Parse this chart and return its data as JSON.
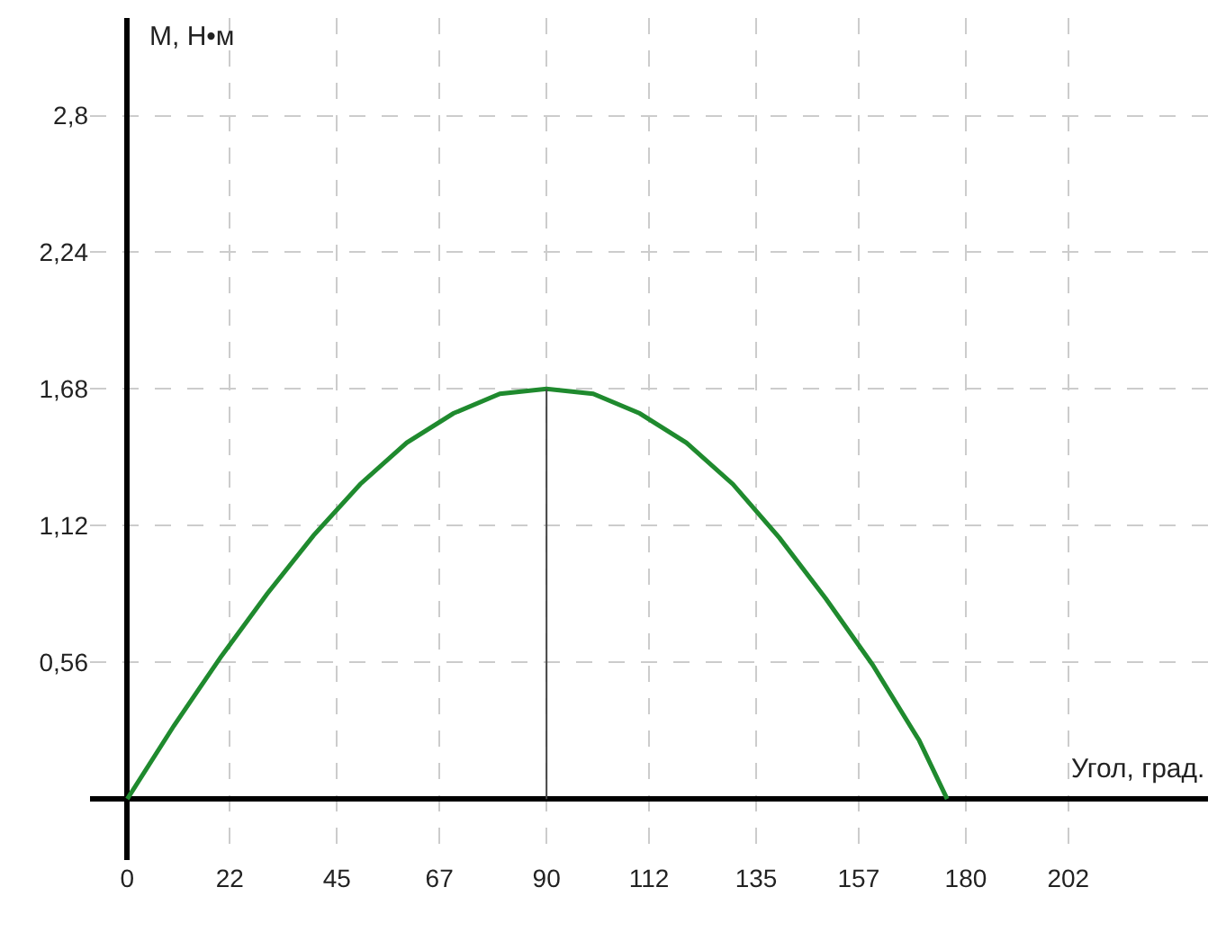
{
  "chart_data": {
    "type": "line",
    "xlabel": "Угол, град.",
    "ylabel": "М, Н•м",
    "series": [
      {
        "color": "#1f8a2e",
        "x": [
          0,
          10,
          20,
          30,
          40,
          50,
          60,
          70,
          80,
          90,
          100,
          110,
          120,
          130,
          140,
          150,
          160,
          170,
          176
        ],
        "values": [
          0,
          0.3,
          0.58,
          0.84,
          1.08,
          1.29,
          1.46,
          1.58,
          1.66,
          1.68,
          1.66,
          1.58,
          1.46,
          1.29,
          1.07,
          0.82,
          0.55,
          0.24,
          0
        ]
      },
      {
        "color": "#444444",
        "x": [
          90,
          90
        ],
        "values": [
          0,
          1.68
        ]
      }
    ],
    "xlim": [
      -8,
      232
    ],
    "ylim": [
      -0.25,
      3.2
    ],
    "xticks": [
      0,
      22,
      45,
      67,
      90,
      112,
      135,
      157,
      180,
      202
    ],
    "yticks": [
      {
        "value": 0.56,
        "label": "0,56"
      },
      {
        "value": 1.12,
        "label": "1,12"
      },
      {
        "value": 1.68,
        "label": "1,68"
      },
      {
        "value": 2.24,
        "label": "2,24"
      },
      {
        "value": 2.8,
        "label": "2,8"
      }
    ],
    "grid": true,
    "marker": "none",
    "line_style": "solid"
  }
}
